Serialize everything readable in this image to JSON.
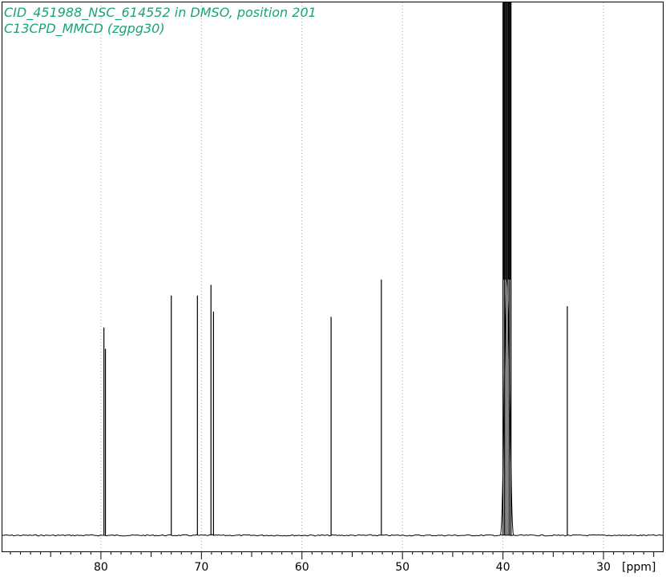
{
  "header": {
    "line1": "CID_451988_NSC_614552 in DMSO, position 201",
    "line2": "C13CPD_MMCD (zgpg30)",
    "color": "#1aa37a"
  },
  "chart_data": {
    "type": "line",
    "title": "",
    "xlabel": "[ppm]",
    "ylabel": "",
    "x_reversed": true,
    "xlim": [
      89.8,
      24.1
    ],
    "ylim": [
      -3,
      100
    ],
    "major_ticks": [
      80,
      70,
      60,
      50,
      40,
      30
    ],
    "minor_step": 1,
    "grid": {
      "x": true,
      "y": false,
      "lines_at": [
        80,
        70,
        60,
        50,
        40,
        30
      ],
      "style": "dotted"
    },
    "baseline": 0,
    "clipped_top": 100,
    "peaks": [
      {
        "ppm": 79.7,
        "height": 39.0
      },
      {
        "ppm": 79.55,
        "height": 35.0
      },
      {
        "ppm": 73.0,
        "height": 45.0
      },
      {
        "ppm": 70.4,
        "height": 45.0
      },
      {
        "ppm": 69.05,
        "height": 47.0
      },
      {
        "ppm": 68.8,
        "height": 42.0
      },
      {
        "ppm": 57.1,
        "height": 41.0
      },
      {
        "ppm": 52.1,
        "height": 48.0
      },
      {
        "ppm": 33.6,
        "height": 43.0
      }
    ],
    "solvent_multiplet": {
      "label": "DMSO",
      "ppm_range": [
        39.2,
        40.0
      ],
      "lines": [
        {
          "ppm": 40.0,
          "height": 100
        },
        {
          "ppm": 39.85,
          "height": 100
        },
        {
          "ppm": 39.7,
          "height": 100
        },
        {
          "ppm": 39.5,
          "height": 100
        },
        {
          "ppm": 39.35,
          "height": 100
        },
        {
          "ppm": 39.2,
          "height": 100
        }
      ],
      "shoulder_height": 48.0
    },
    "line_color": "#000000",
    "grid_color": "#9a9a9a"
  }
}
